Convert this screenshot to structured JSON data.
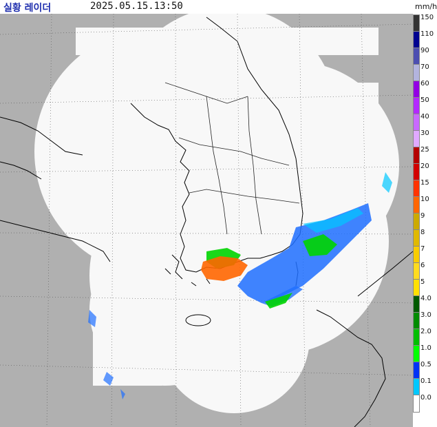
{
  "header": {
    "title": "실황 레이더",
    "timestamp": "2025.05.15.13:50",
    "unit": "mm/h"
  },
  "colors": {
    "outside_bg": "#b0b0b0",
    "coverage_bg": "#f8f8f8",
    "coastline": "#000000",
    "grid": "#555555",
    "rain_blue": "#1f6fff",
    "rain_cyan": "#00c8ff",
    "rain_green": "#00d400",
    "rain_orange": "#ff6600"
  },
  "legend": {
    "items": [
      {
        "label": "150",
        "color": "#333333"
      },
      {
        "label": "110",
        "color": "#000390"
      },
      {
        "label": "90",
        "color": "#4c4eb1"
      },
      {
        "label": "70",
        "color": "#b3b4de"
      },
      {
        "label": "60",
        "color": "#9300e4"
      },
      {
        "label": "50",
        "color": "#b329ff"
      },
      {
        "label": "40",
        "color": "#c969ff"
      },
      {
        "label": "30",
        "color": "#e0a9ff"
      },
      {
        "label": "25",
        "color": "#b40000"
      },
      {
        "label": "20",
        "color": "#d20000"
      },
      {
        "label": "15",
        "color": "#ff3300"
      },
      {
        "label": "10",
        "color": "#ff6600"
      },
      {
        "label": "9",
        "color": "#ccaa00"
      },
      {
        "label": "8",
        "color": "#e0b900"
      },
      {
        "label": "7",
        "color": "#f9cd00"
      },
      {
        "label": "6",
        "color": "#ffdc1f"
      },
      {
        "label": "5",
        "color": "#ffe100"
      },
      {
        "label": "4.0",
        "color": "#005a00"
      },
      {
        "label": "3.0",
        "color": "#008c00"
      },
      {
        "label": "2.0",
        "color": "#00be00"
      },
      {
        "label": "1.0",
        "color": "#00ff00"
      },
      {
        "label": "0.5",
        "color": "#0033f5"
      },
      {
        "label": "0.1",
        "color": "#00c8ff"
      },
      {
        "label": "0.0",
        "color": "#ffffff"
      }
    ]
  }
}
